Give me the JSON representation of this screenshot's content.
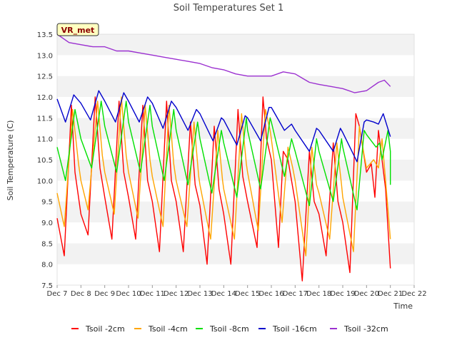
{
  "chart_data": {
    "type": "line",
    "title": "Soil Temperatures Set 1",
    "xlabel": "Time",
    "ylabel": "Soil Temperature (C)",
    "ylim": [
      7.5,
      13.5
    ],
    "xlim_days": [
      0,
      15
    ],
    "x_ticks": [
      "Dec 7",
      "Dec 8",
      "Dec 9",
      "Dec 10",
      "Dec 11",
      "Dec 12",
      "Dec 13",
      "Dec 14",
      "Dec 15",
      "Dec 16",
      "Dec 17",
      "Dec 18",
      "Dec 19",
      "Dec 20",
      "Dec 21",
      "Dec 22"
    ],
    "y_ticks": [
      7.5,
      8.0,
      8.5,
      9.0,
      9.5,
      10.0,
      10.5,
      11.0,
      11.5,
      12.0,
      12.5,
      13.0,
      13.5
    ],
    "grid": "horizontal bands",
    "legend_position": "bottom",
    "station_label": "VR_met",
    "x_values": [
      "Dec 7",
      "Dec 7.5",
      "Dec 8",
      "Dec 8.5",
      "Dec 9",
      "Dec 9.5",
      "Dec 10",
      "Dec 10.5",
      "Dec 11",
      "Dec 11.5",
      "Dec 12",
      "Dec 12.5",
      "Dec 13",
      "Dec 13.5",
      "Dec 14",
      "Dec 14.5",
      "Dec 15",
      "Dec 15.5",
      "Dec 16",
      "Dec 16.5",
      "Dec 17",
      "Dec 17.5",
      "Dec 18",
      "Dec 18.5",
      "Dec 19",
      "Dec 19.5",
      "Dec 20",
      "Dec 20.5",
      "Dec 21"
    ],
    "series": [
      {
        "name": "Tsoil -2cm",
        "color": "#ff0000",
        "points": [
          [
            0.0,
            9.1
          ],
          [
            0.3,
            8.2
          ],
          [
            0.6,
            11.8
          ],
          [
            0.75,
            10.2
          ],
          [
            1.0,
            9.2
          ],
          [
            1.3,
            8.7
          ],
          [
            1.6,
            12.0
          ],
          [
            1.8,
            10.3
          ],
          [
            2.0,
            9.6
          ],
          [
            2.3,
            8.6
          ],
          [
            2.6,
            11.9
          ],
          [
            2.8,
            10.2
          ],
          [
            3.0,
            9.6
          ],
          [
            3.3,
            8.6
          ],
          [
            3.6,
            11.8
          ],
          [
            3.8,
            10.0
          ],
          [
            4.0,
            9.5
          ],
          [
            4.3,
            8.3
          ],
          [
            4.6,
            11.9
          ],
          [
            4.8,
            10.0
          ],
          [
            5.0,
            9.5
          ],
          [
            5.3,
            8.3
          ],
          [
            5.6,
            11.4
          ],
          [
            5.8,
            9.9
          ],
          [
            6.0,
            9.4
          ],
          [
            6.3,
            8.0
          ],
          [
            6.6,
            11.3
          ],
          [
            6.8,
            9.8
          ],
          [
            7.0,
            9.2
          ],
          [
            7.3,
            8.0
          ],
          [
            7.6,
            11.7
          ],
          [
            7.8,
            10.1
          ],
          [
            8.0,
            9.5
          ],
          [
            8.4,
            8.4
          ],
          [
            8.65,
            12.0
          ],
          [
            8.8,
            11.0
          ],
          [
            9.0,
            10.5
          ],
          [
            9.3,
            8.4
          ],
          [
            9.5,
            10.7
          ],
          [
            9.7,
            10.5
          ],
          [
            10.0,
            9.5
          ],
          [
            10.3,
            7.6
          ],
          [
            10.6,
            10.7
          ],
          [
            10.8,
            9.5
          ],
          [
            11.0,
            9.2
          ],
          [
            11.3,
            8.2
          ],
          [
            11.6,
            10.9
          ],
          [
            11.8,
            9.5
          ],
          [
            12.0,
            9.0
          ],
          [
            12.3,
            7.8
          ],
          [
            12.55,
            11.6
          ],
          [
            12.7,
            11.3
          ],
          [
            13.0,
            10.2
          ],
          [
            13.2,
            10.4
          ],
          [
            13.35,
            9.6
          ],
          [
            13.5,
            11.2
          ],
          [
            13.8,
            9.8
          ],
          [
            14.0,
            7.9
          ]
        ]
      },
      {
        "name": "Tsoil -4cm",
        "color": "#ffa500",
        "points": [
          [
            0.0,
            9.7
          ],
          [
            0.3,
            8.9
          ],
          [
            0.65,
            11.7
          ],
          [
            0.9,
            10.4
          ],
          [
            1.0,
            10.0
          ],
          [
            1.3,
            9.3
          ],
          [
            1.7,
            11.9
          ],
          [
            1.9,
            10.6
          ],
          [
            2.0,
            10.2
          ],
          [
            2.4,
            9.2
          ],
          [
            2.7,
            12.0
          ],
          [
            2.9,
            10.6
          ],
          [
            3.0,
            10.2
          ],
          [
            3.4,
            9.1
          ],
          [
            3.7,
            11.8
          ],
          [
            3.9,
            10.5
          ],
          [
            4.0,
            10.1
          ],
          [
            4.45,
            8.9
          ],
          [
            4.7,
            11.8
          ],
          [
            4.9,
            10.4
          ],
          [
            5.0,
            10.0
          ],
          [
            5.45,
            8.9
          ],
          [
            5.75,
            11.4
          ],
          [
            5.95,
            10.1
          ],
          [
            6.0,
            9.9
          ],
          [
            6.45,
            8.6
          ],
          [
            6.75,
            11.2
          ],
          [
            6.95,
            10.0
          ],
          [
            7.0,
            9.8
          ],
          [
            7.45,
            8.6
          ],
          [
            7.75,
            11.6
          ],
          [
            7.95,
            10.4
          ],
          [
            8.0,
            10.2
          ],
          [
            8.45,
            8.8
          ],
          [
            8.75,
            11.7
          ],
          [
            8.95,
            11.2
          ],
          [
            9.0,
            11.0
          ],
          [
            9.45,
            9.0
          ],
          [
            9.7,
            10.8
          ],
          [
            9.9,
            10.3
          ],
          [
            10.0,
            10.0
          ],
          [
            10.45,
            8.2
          ],
          [
            10.7,
            10.8
          ],
          [
            10.9,
            9.9
          ],
          [
            11.0,
            9.7
          ],
          [
            11.45,
            8.6
          ],
          [
            11.75,
            10.9
          ],
          [
            11.95,
            9.9
          ],
          [
            12.0,
            9.6
          ],
          [
            12.45,
            8.3
          ],
          [
            12.7,
            11.3
          ],
          [
            12.9,
            10.6
          ],
          [
            13.0,
            10.3
          ],
          [
            13.3,
            10.5
          ],
          [
            13.5,
            10.3
          ],
          [
            13.65,
            11.0
          ],
          [
            13.8,
            10.0
          ],
          [
            14.0,
            8.6
          ]
        ]
      },
      {
        "name": "Tsoil -8cm",
        "color": "#00e000",
        "points": [
          [
            0.0,
            10.8
          ],
          [
            0.35,
            10.0
          ],
          [
            0.75,
            11.7
          ],
          [
            1.0,
            11.0
          ],
          [
            1.45,
            10.3
          ],
          [
            1.85,
            11.9
          ],
          [
            2.0,
            11.3
          ],
          [
            2.5,
            10.2
          ],
          [
            2.9,
            11.9
          ],
          [
            3.0,
            11.4
          ],
          [
            3.5,
            10.2
          ],
          [
            3.9,
            11.8
          ],
          [
            4.0,
            11.3
          ],
          [
            4.5,
            10.0
          ],
          [
            4.9,
            11.7
          ],
          [
            5.0,
            11.2
          ],
          [
            5.5,
            9.9
          ],
          [
            5.9,
            11.4
          ],
          [
            6.0,
            11.0
          ],
          [
            6.5,
            9.7
          ],
          [
            6.9,
            11.2
          ],
          [
            7.0,
            10.9
          ],
          [
            7.55,
            9.6
          ],
          [
            7.95,
            11.5
          ],
          [
            8.0,
            11.2
          ],
          [
            8.55,
            9.8
          ],
          [
            8.95,
            11.5
          ],
          [
            9.0,
            11.4
          ],
          [
            9.55,
            10.1
          ],
          [
            9.85,
            11.0
          ],
          [
            10.0,
            10.7
          ],
          [
            10.6,
            9.4
          ],
          [
            10.9,
            11.0
          ],
          [
            11.0,
            10.7
          ],
          [
            11.6,
            9.5
          ],
          [
            11.95,
            11.0
          ],
          [
            12.0,
            10.8
          ],
          [
            12.6,
            9.3
          ],
          [
            12.9,
            11.2
          ],
          [
            13.0,
            11.1
          ],
          [
            13.4,
            10.8
          ],
          [
            13.55,
            10.9
          ],
          [
            13.65,
            10.5
          ],
          [
            13.9,
            11.2
          ],
          [
            14.0,
            10.7
          ],
          [
            14.0,
            9.9
          ]
        ]
      },
      {
        "name": "Tsoil -16cm",
        "color": "#0000cc",
        "points": [
          [
            0.0,
            11.95
          ],
          [
            0.35,
            11.4
          ],
          [
            0.7,
            12.05
          ],
          [
            1.0,
            11.85
          ],
          [
            1.4,
            11.45
          ],
          [
            1.75,
            12.15
          ],
          [
            2.0,
            11.9
          ],
          [
            2.45,
            11.4
          ],
          [
            2.8,
            12.1
          ],
          [
            3.0,
            11.9
          ],
          [
            3.45,
            11.4
          ],
          [
            3.8,
            12.0
          ],
          [
            4.0,
            11.85
          ],
          [
            4.45,
            11.25
          ],
          [
            4.8,
            11.9
          ],
          [
            5.0,
            11.75
          ],
          [
            5.5,
            11.2
          ],
          [
            5.85,
            11.7
          ],
          [
            6.0,
            11.6
          ],
          [
            6.55,
            10.95
          ],
          [
            6.9,
            11.5
          ],
          [
            7.0,
            11.45
          ],
          [
            7.55,
            10.85
          ],
          [
            7.9,
            11.55
          ],
          [
            8.0,
            11.5
          ],
          [
            8.55,
            10.95
          ],
          [
            8.9,
            11.75
          ],
          [
            9.0,
            11.75
          ],
          [
            9.55,
            11.2
          ],
          [
            9.85,
            11.35
          ],
          [
            10.0,
            11.2
          ],
          [
            10.6,
            10.7
          ],
          [
            10.9,
            11.25
          ],
          [
            11.0,
            11.2
          ],
          [
            11.6,
            10.7
          ],
          [
            11.9,
            11.25
          ],
          [
            12.0,
            11.15
          ],
          [
            12.6,
            10.45
          ],
          [
            12.9,
            11.4
          ],
          [
            13.0,
            11.45
          ],
          [
            13.3,
            11.4
          ],
          [
            13.5,
            11.35
          ],
          [
            13.7,
            11.6
          ],
          [
            14.0,
            11.05
          ]
        ]
      },
      {
        "name": "Tsoil -32cm",
        "color": "#9b30d0",
        "points": [
          [
            0.0,
            13.5
          ],
          [
            0.5,
            13.3
          ],
          [
            1.0,
            13.25
          ],
          [
            1.5,
            13.2
          ],
          [
            2.0,
            13.2
          ],
          [
            2.5,
            13.1
          ],
          [
            3.0,
            13.1
          ],
          [
            3.5,
            13.05
          ],
          [
            4.0,
            13.0
          ],
          [
            4.5,
            12.95
          ],
          [
            5.0,
            12.9
          ],
          [
            5.5,
            12.85
          ],
          [
            6.0,
            12.8
          ],
          [
            6.5,
            12.7
          ],
          [
            7.0,
            12.65
          ],
          [
            7.5,
            12.55
          ],
          [
            8.0,
            12.5
          ],
          [
            8.5,
            12.5
          ],
          [
            9.0,
            12.5
          ],
          [
            9.5,
            12.6
          ],
          [
            10.0,
            12.55
          ],
          [
            10.3,
            12.45
          ],
          [
            10.6,
            12.35
          ],
          [
            11.0,
            12.3
          ],
          [
            11.5,
            12.25
          ],
          [
            12.0,
            12.2
          ],
          [
            12.5,
            12.1
          ],
          [
            13.0,
            12.15
          ],
          [
            13.5,
            12.35
          ],
          [
            13.75,
            12.4
          ],
          [
            14.0,
            12.25
          ]
        ]
      }
    ]
  }
}
